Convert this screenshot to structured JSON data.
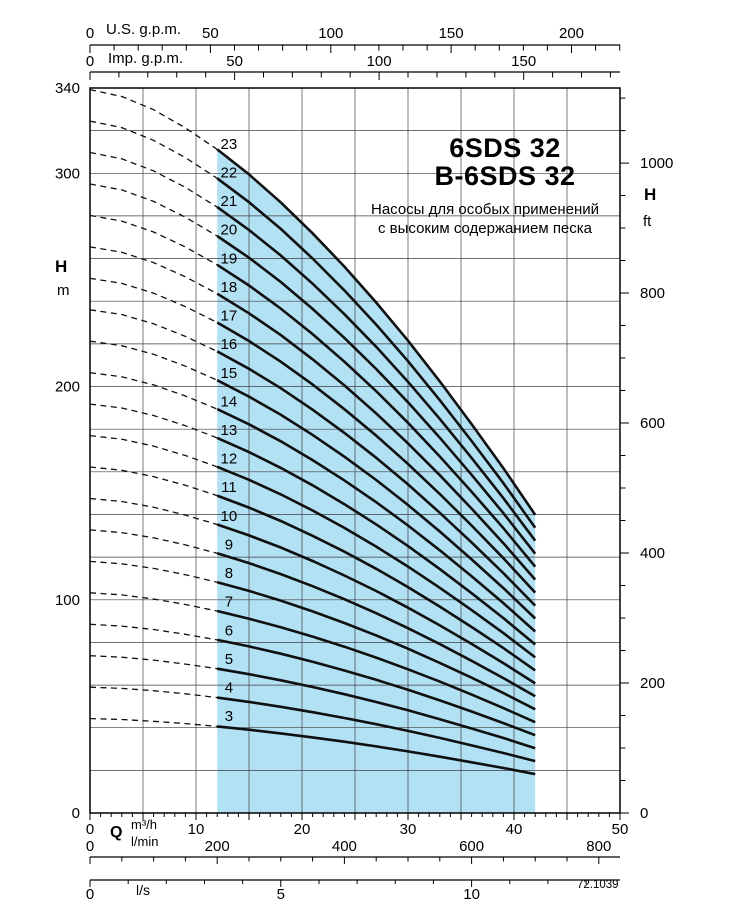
{
  "chart_data": {
    "type": "line",
    "title_line1": "6SDS 32",
    "title_line2": "B-6SDS 32",
    "subtitle_line1": "Насосы для особых применений",
    "subtitle_line2": "с высоким содержанием песка",
    "code": "72.1039",
    "colors": {
      "band": "#b3e1f4",
      "curve": "#101010",
      "grid": "#3f3f3f",
      "axis": "#000000"
    },
    "x_axis": {
      "quantity": "Q",
      "units": [
        "m³/h",
        "l/min",
        "l/s"
      ],
      "range_m3h": [
        0,
        50
      ],
      "grid_step_m3h": 5
    },
    "y_axis": {
      "quantity": "H",
      "units": [
        "m",
        "ft"
      ],
      "range_m": [
        0,
        340
      ],
      "grid_step_m": 20
    },
    "axes": {
      "top_us_gpm": {
        "name": "U.S. g.p.m.",
        "tick_labels": [
          0,
          50,
          100,
          150,
          200
        ],
        "minor_step": 10,
        "minor_max": 220,
        "per_m3h": 4.4029
      },
      "top_imp_gpm": {
        "name": "Imp. g.p.m.",
        "tick_labels": [
          0,
          50,
          100,
          150
        ],
        "minor_step": 10,
        "minor_max": 190,
        "per_m3h": 3.6662
      },
      "left_h_m": {
        "name": "H",
        "unit": "m",
        "tick_labels": [
          0,
          100,
          200,
          300,
          340
        ]
      },
      "right_h_ft": {
        "name": "H",
        "unit": "ft",
        "tick_labels": [
          0,
          200,
          400,
          600,
          800,
          1000
        ],
        "minor_step": 50,
        "minor_max": 1115,
        "per_m": 3.2808
      },
      "bottom_q_m3h": {
        "name": "Q",
        "unit": "m³/h",
        "tick_labels": [
          0,
          10,
          20,
          30,
          40,
          50
        ],
        "minor_step": 1,
        "minor_max": 50
      },
      "bottom_lmin": {
        "unit": "l/min",
        "tick_labels": [
          0,
          200,
          400,
          600,
          800
        ],
        "minor_step": 50,
        "minor_max": 840,
        "per_m3h": 16.667
      },
      "bottom_ls": {
        "unit": "l/s",
        "tick_labels": [
          0,
          5,
          10
        ],
        "minor_step": 1,
        "minor_max": 14,
        "per_m3h": 0.27778
      }
    },
    "curves": {
      "stages": [
        3,
        4,
        5,
        6,
        7,
        8,
        9,
        10,
        11,
        12,
        13,
        14,
        15,
        16,
        17,
        18,
        19,
        20,
        21,
        22,
        23
      ],
      "q_m3h": [
        0,
        3,
        6,
        9,
        12,
        15,
        18,
        21,
        24,
        27,
        30,
        33,
        36,
        39,
        42
      ],
      "head_per_stage_m": [
        14.75,
        14.61,
        14.34,
        13.97,
        13.53,
        13.02,
        12.45,
        11.82,
        11.14,
        10.41,
        9.63,
        8.8,
        7.93,
        7.03,
        6.08
      ],
      "dashed_range_m3h": [
        0,
        12
      ],
      "solid_range_m3h": [
        12,
        42
      ],
      "label_head_per_stage_m": 13.42,
      "label_q_m3h": 13.1
    }
  }
}
